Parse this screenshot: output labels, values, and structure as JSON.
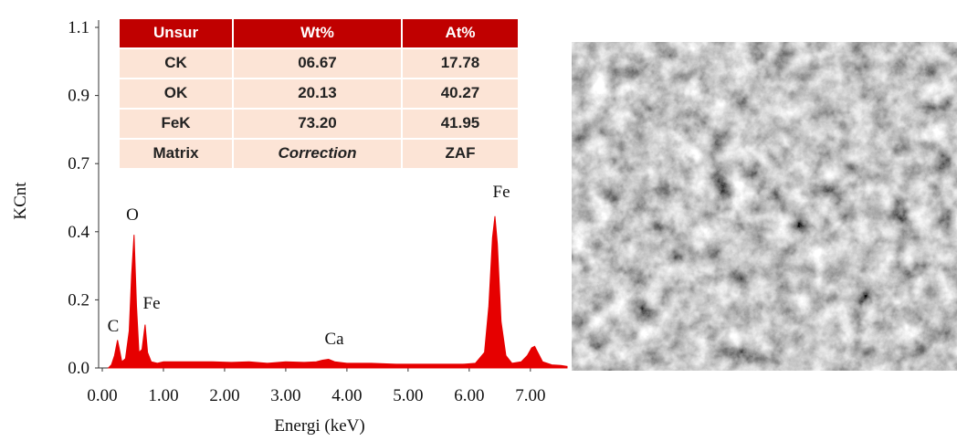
{
  "chart_data": {
    "type": "area",
    "x_label": "Energi (keV)",
    "y_label": "KCnt",
    "x": [
      0.1,
      0.15,
      0.2,
      0.25,
      0.28,
      0.32,
      0.38,
      0.44,
      0.48,
      0.52,
      0.56,
      0.6,
      0.65,
      0.7,
      0.74,
      0.8,
      0.9,
      1.0,
      1.2,
      1.5,
      1.8,
      2.1,
      2.4,
      2.7,
      3.0,
      3.3,
      3.5,
      3.6,
      3.7,
      3.8,
      4.0,
      4.4,
      4.8,
      5.2,
      5.6,
      5.9,
      6.1,
      6.25,
      6.32,
      6.38,
      6.42,
      6.46,
      6.52,
      6.6,
      6.7,
      6.85,
      6.95,
      7.02,
      7.07,
      7.12,
      7.2,
      7.35,
      7.5,
      7.6
    ],
    "values": [
      0.0,
      0.01,
      0.04,
      0.09,
      0.06,
      0.02,
      0.03,
      0.12,
      0.3,
      0.43,
      0.2,
      0.05,
      0.06,
      0.14,
      0.05,
      0.02,
      0.015,
      0.02,
      0.02,
      0.02,
      0.02,
      0.018,
      0.02,
      0.015,
      0.02,
      0.018,
      0.02,
      0.025,
      0.028,
      0.02,
      0.015,
      0.015,
      0.012,
      0.012,
      0.012,
      0.012,
      0.015,
      0.05,
      0.2,
      0.42,
      0.49,
      0.4,
      0.15,
      0.04,
      0.015,
      0.02,
      0.04,
      0.065,
      0.07,
      0.05,
      0.02,
      0.01,
      0.008,
      0.005
    ],
    "color": "#e60000",
    "xlim": [
      0,
      7.6
    ],
    "xticks": [
      {
        "value": 0,
        "label": "0.00"
      },
      {
        "value": 1,
        "label": "1.00"
      },
      {
        "value": 2,
        "label": "2.00"
      },
      {
        "value": 3,
        "label": "3.00"
      },
      {
        "value": 4,
        "label": "4.00"
      },
      {
        "value": 5,
        "label": "5.00"
      },
      {
        "value": 6,
        "label": "6.00"
      },
      {
        "value": 7,
        "label": "7.00"
      }
    ],
    "ylim": [
      0,
      1.1
    ],
    "yticks": [
      {
        "value": 0,
        "label": "0.0"
      },
      {
        "value": 0.22,
        "label": "0.2"
      },
      {
        "value": 0.44,
        "label": "0.4"
      },
      {
        "value": 0.66,
        "label": "0.7"
      },
      {
        "value": 0.88,
        "label": "0.9"
      },
      1.1
    ],
    "annotations": [
      "C",
      "O",
      "Fe",
      "Ca",
      "Fe"
    ]
  },
  "table": {
    "header": [
      "Unsur",
      "Wt%",
      "At%"
    ],
    "rows": [
      [
        "CK",
        "06.67",
        "17.78"
      ],
      [
        "OK",
        "20.13",
        "40.27"
      ],
      [
        "FeK",
        "73.20",
        "41.95"
      ],
      [
        "Matrix",
        "Correction",
        "ZAF"
      ]
    ]
  }
}
